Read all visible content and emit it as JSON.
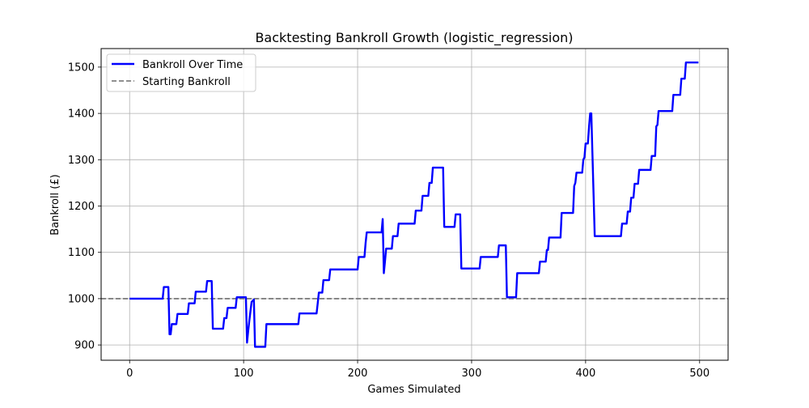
{
  "chart_data": {
    "type": "line",
    "title": "Backtesting Bankroll Growth (logistic_regression)",
    "xlabel": "Games Simulated",
    "ylabel": "Bankroll (£)",
    "xlim": [
      -25,
      525
    ],
    "ylim": [
      867,
      1540
    ],
    "xticks": [
      0,
      100,
      200,
      300,
      400,
      500
    ],
    "yticks": [
      900,
      1000,
      1100,
      1200,
      1300,
      1400,
      1500
    ],
    "grid": true,
    "legend_position": "top-left",
    "reference_line": {
      "name": "Starting Bankroll",
      "y": 1000,
      "color": "#808080",
      "style": "dashed"
    },
    "series": [
      {
        "name": "Bankroll Over Time",
        "color": "#0000ff",
        "points": [
          [
            0,
            1000
          ],
          [
            29,
            1000
          ],
          [
            30,
            1025
          ],
          [
            34,
            1025
          ],
          [
            35,
            923
          ],
          [
            36,
            923
          ],
          [
            37,
            945
          ],
          [
            41,
            945
          ],
          [
            42,
            967
          ],
          [
            51,
            967
          ],
          [
            52,
            990
          ],
          [
            57,
            990
          ],
          [
            58,
            1015
          ],
          [
            67,
            1015
          ],
          [
            68,
            1038
          ],
          [
            72,
            1038
          ],
          [
            73,
            935
          ],
          [
            82,
            935
          ],
          [
            83,
            958
          ],
          [
            85,
            958
          ],
          [
            86,
            980
          ],
          [
            93,
            980
          ],
          [
            94,
            1003
          ],
          [
            101,
            1003
          ],
          [
            102,
            1003
          ],
          [
            103,
            905
          ],
          [
            104,
            930
          ],
          [
            105,
            952
          ],
          [
            106,
            973
          ],
          [
            107,
            993
          ],
          [
            109,
            998
          ],
          [
            110,
            896
          ],
          [
            119,
            896
          ],
          [
            120,
            945
          ],
          [
            148,
            945
          ],
          [
            149,
            968
          ],
          [
            164,
            968
          ],
          [
            165,
            990
          ],
          [
            166,
            1013
          ],
          [
            169,
            1013
          ],
          [
            170,
            1040
          ],
          [
            175,
            1040
          ],
          [
            176,
            1063
          ],
          [
            200,
            1063
          ],
          [
            201,
            1090
          ],
          [
            206,
            1090
          ],
          [
            207,
            1120
          ],
          [
            208,
            1143
          ],
          [
            221,
            1143
          ],
          [
            222,
            1172
          ],
          [
            223,
            1055
          ],
          [
            224,
            1080
          ],
          [
            225,
            1108
          ],
          [
            230,
            1108
          ],
          [
            231,
            1135
          ],
          [
            235,
            1135
          ],
          [
            236,
            1162
          ],
          [
            250,
            1162
          ],
          [
            251,
            1190
          ],
          [
            256,
            1190
          ],
          [
            257,
            1222
          ],
          [
            262,
            1222
          ],
          [
            263,
            1250
          ],
          [
            265,
            1250
          ],
          [
            266,
            1283
          ],
          [
            275,
            1283
          ],
          [
            276,
            1155
          ],
          [
            285,
            1155
          ],
          [
            286,
            1182
          ],
          [
            290,
            1182
          ],
          [
            291,
            1065
          ],
          [
            307,
            1065
          ],
          [
            308,
            1090
          ],
          [
            323,
            1090
          ],
          [
            324,
            1115
          ],
          [
            330,
            1115
          ],
          [
            331,
            1003
          ],
          [
            339,
            1003
          ],
          [
            340,
            1055
          ],
          [
            359,
            1055
          ],
          [
            360,
            1080
          ],
          [
            365,
            1080
          ],
          [
            366,
            1105
          ],
          [
            367,
            1105
          ],
          [
            368,
            1132
          ],
          [
            378,
            1132
          ],
          [
            379,
            1185
          ],
          [
            389,
            1185
          ],
          [
            390,
            1243
          ],
          [
            391,
            1250
          ],
          [
            392,
            1272
          ],
          [
            397,
            1272
          ],
          [
            398,
            1300
          ],
          [
            399,
            1305
          ],
          [
            400,
            1335
          ],
          [
            402,
            1335
          ],
          [
            403,
            1370
          ],
          [
            404,
            1400
          ],
          [
            405,
            1400
          ],
          [
            408,
            1135
          ],
          [
            431,
            1135
          ],
          [
            432,
            1162
          ],
          [
            436,
            1162
          ],
          [
            437,
            1188
          ],
          [
            439,
            1188
          ],
          [
            440,
            1218
          ],
          [
            442,
            1218
          ],
          [
            443,
            1248
          ],
          [
            446,
            1248
          ],
          [
            447,
            1278
          ],
          [
            457,
            1278
          ],
          [
            458,
            1308
          ],
          [
            461,
            1308
          ],
          [
            462,
            1372
          ],
          [
            463,
            1375
          ],
          [
            464,
            1405
          ],
          [
            476,
            1405
          ],
          [
            477,
            1440
          ],
          [
            483,
            1440
          ],
          [
            484,
            1475
          ],
          [
            487,
            1475
          ],
          [
            488,
            1510
          ],
          [
            499,
            1510
          ]
        ]
      }
    ]
  }
}
